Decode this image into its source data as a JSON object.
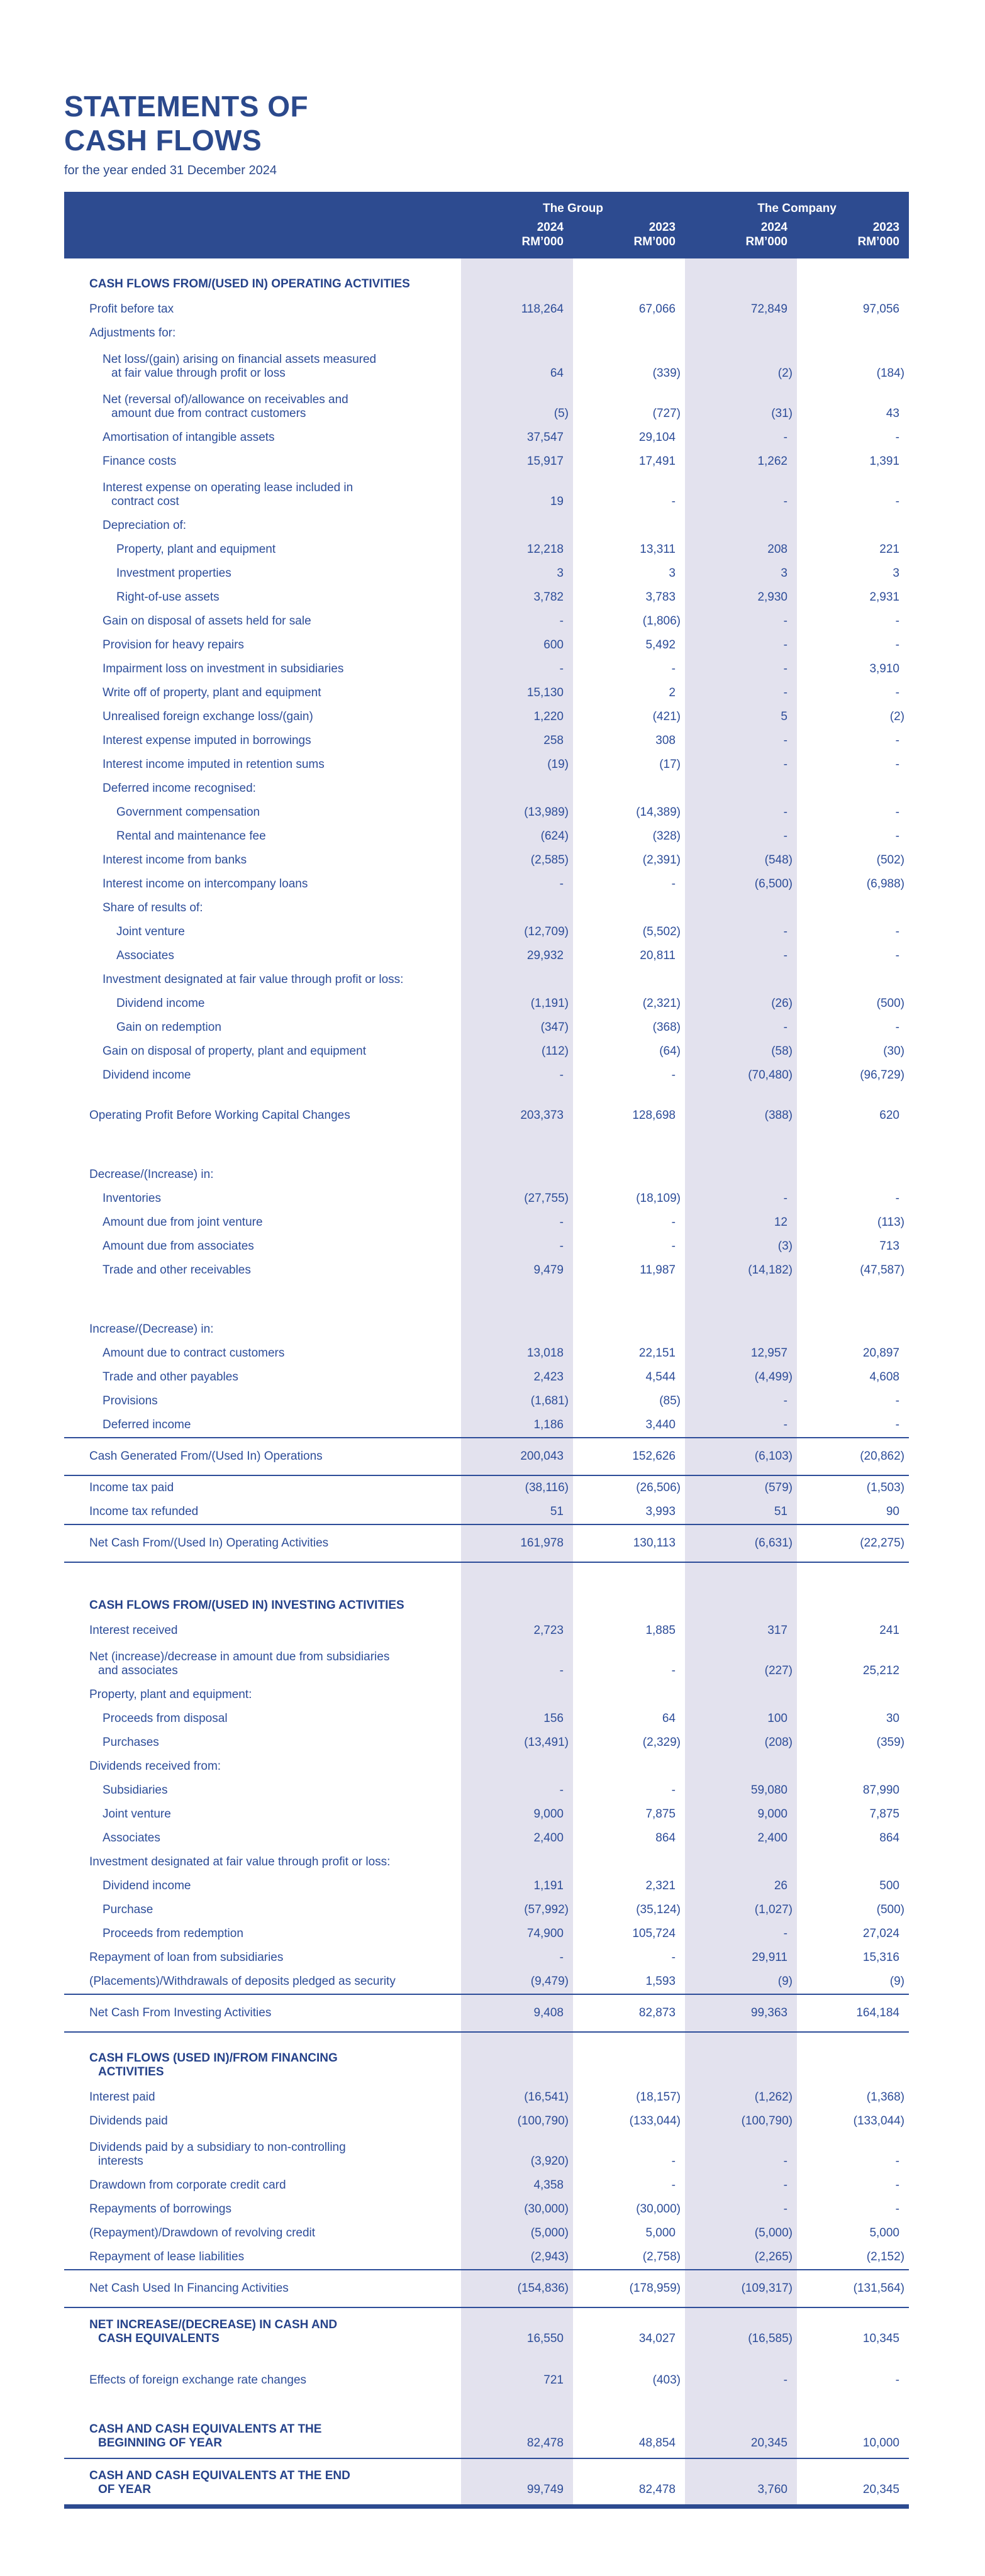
{
  "page": {
    "title_line1": "STATEMENTS OF",
    "title_line2": "CASH FLOWS",
    "subtitle": "for the year ended 31 December 2024"
  },
  "colors": {
    "header_bar": "#2d4b90",
    "text_blue": "#2d4d99",
    "section_blue": "#25428a",
    "band_highlight": "#e3e2ee",
    "rule": "#2d4d99"
  },
  "table": {
    "groups": [
      {
        "label": "The Group"
      },
      {
        "label": "The Company"
      }
    ],
    "columns": [
      {
        "year": "2024",
        "unit": "RM’000"
      },
      {
        "year": "2023",
        "unit": "RM’000"
      },
      {
        "year": "2024",
        "unit": "RM’000"
      },
      {
        "year": "2023",
        "unit": "RM’000"
      }
    ],
    "rows": [
      {
        "style": "section",
        "lines": [
          "CASH FLOWS FROM/(USED IN) OPERATING ACTIVITIES"
        ]
      },
      {
        "style": "item",
        "indent": 0,
        "lines": [
          "Profit before tax"
        ],
        "values": [
          "118,264",
          "67,066",
          "72,849",
          "97,056"
        ]
      },
      {
        "style": "subheader",
        "indent": 0,
        "lines": [
          "Adjustments for:"
        ]
      },
      {
        "style": "item",
        "indent": 1,
        "lines": [
          "Net loss/(gain) arising on financial assets measured",
          "at fair value through profit or loss"
        ],
        "values": [
          "64",
          "(339)",
          "(2)",
          "(184)"
        ]
      },
      {
        "style": "item",
        "indent": 1,
        "lines": [
          "Net (reversal of)/allowance on receivables and",
          "amount due from contract customers"
        ],
        "values": [
          "(5)",
          "(727)",
          "(31)",
          "43"
        ]
      },
      {
        "style": "item",
        "indent": 1,
        "lines": [
          "Amortisation of intangible assets"
        ],
        "values": [
          "37,547",
          "29,104",
          "-",
          "-"
        ]
      },
      {
        "style": "item",
        "indent": 1,
        "lines": [
          "Finance costs"
        ],
        "values": [
          "15,917",
          "17,491",
          "1,262",
          "1,391"
        ]
      },
      {
        "style": "item",
        "indent": 1,
        "lines": [
          "Interest expense on operating lease included in",
          "contract cost"
        ],
        "values": [
          "19",
          "-",
          "-",
          "-"
        ]
      },
      {
        "style": "subheader",
        "indent": 1,
        "lines": [
          "Depreciation of:"
        ]
      },
      {
        "style": "item",
        "indent": 2,
        "lines": [
          "Property, plant and equipment"
        ],
        "values": [
          "12,218",
          "13,311",
          "208",
          "221"
        ]
      },
      {
        "style": "item",
        "indent": 2,
        "lines": [
          "Investment properties"
        ],
        "values": [
          "3",
          "3",
          "3",
          "3"
        ]
      },
      {
        "style": "item",
        "indent": 2,
        "lines": [
          "Right-of-use assets"
        ],
        "values": [
          "3,782",
          "3,783",
          "2,930",
          "2,931"
        ]
      },
      {
        "style": "item",
        "indent": 1,
        "lines": [
          "Gain on disposal of assets held for sale"
        ],
        "values": [
          "-",
          "(1,806)",
          "-",
          "-"
        ]
      },
      {
        "style": "item",
        "indent": 1,
        "lines": [
          "Provision for heavy repairs"
        ],
        "values": [
          "600",
          "5,492",
          "-",
          "-"
        ]
      },
      {
        "style": "item",
        "indent": 1,
        "lines": [
          "Impairment loss on investment in subsidiaries"
        ],
        "values": [
          "-",
          "-",
          "-",
          "3,910"
        ]
      },
      {
        "style": "item",
        "indent": 1,
        "lines": [
          "Write off of property, plant and equipment"
        ],
        "values": [
          "15,130",
          "2",
          "-",
          "-"
        ]
      },
      {
        "style": "item",
        "indent": 1,
        "lines": [
          "Unrealised foreign exchange loss/(gain)"
        ],
        "values": [
          "1,220",
          "(421)",
          "5",
          "(2)"
        ]
      },
      {
        "style": "item",
        "indent": 1,
        "lines": [
          "Interest expense imputed in borrowings"
        ],
        "values": [
          "258",
          "308",
          "-",
          "-"
        ]
      },
      {
        "style": "item",
        "indent": 1,
        "lines": [
          "Interest income imputed in retention sums"
        ],
        "values": [
          "(19)",
          "(17)",
          "-",
          "-"
        ]
      },
      {
        "style": "subheader",
        "indent": 1,
        "lines": [
          "Deferred income recognised:"
        ]
      },
      {
        "style": "item",
        "indent": 2,
        "lines": [
          "Government compensation"
        ],
        "values": [
          "(13,989)",
          "(14,389)",
          "-",
          "-"
        ]
      },
      {
        "style": "item",
        "indent": 2,
        "lines": [
          "Rental and maintenance fee"
        ],
        "values": [
          "(624)",
          "(328)",
          "-",
          "-"
        ]
      },
      {
        "style": "item",
        "indent": 1,
        "lines": [
          "Interest income from banks"
        ],
        "values": [
          "(2,585)",
          "(2,391)",
          "(548)",
          "(502)"
        ]
      },
      {
        "style": "item",
        "indent": 1,
        "lines": [
          "Interest income on intercompany loans"
        ],
        "values": [
          "-",
          "-",
          "(6,500)",
          "(6,988)"
        ]
      },
      {
        "style": "subheader",
        "indent": 1,
        "lines": [
          "Share of results of:"
        ]
      },
      {
        "style": "item",
        "indent": 2,
        "lines": [
          "Joint venture"
        ],
        "values": [
          "(12,709)",
          "(5,502)",
          "-",
          "-"
        ]
      },
      {
        "style": "item",
        "indent": 2,
        "lines": [
          "Associates"
        ],
        "values": [
          "29,932",
          "20,811",
          "-",
          "-"
        ]
      },
      {
        "style": "subheader",
        "indent": 1,
        "lines": [
          "Investment designated at fair value through profit or loss:"
        ]
      },
      {
        "style": "item",
        "indent": 2,
        "lines": [
          "Dividend income"
        ],
        "values": [
          "(1,191)",
          "(2,321)",
          "(26)",
          "(500)"
        ]
      },
      {
        "style": "item",
        "indent": 2,
        "lines": [
          "Gain on redemption"
        ],
        "values": [
          "(347)",
          "(368)",
          "-",
          "-"
        ]
      },
      {
        "style": "item",
        "indent": 1,
        "lines": [
          "Gain on disposal of property, plant and equipment"
        ],
        "values": [
          "(112)",
          "(64)",
          "(58)",
          "(30)"
        ]
      },
      {
        "style": "item",
        "indent": 1,
        "lines": [
          "Dividend income"
        ],
        "values": [
          "-",
          "-",
          "(70,480)",
          "(96,729)"
        ]
      },
      {
        "style": "spacer",
        "h": 26
      },
      {
        "style": "item",
        "indent": 0,
        "lines": [
          "Operating Profit Before Working Capital Changes"
        ],
        "values": [
          "203,373",
          "128,698",
          "(388)",
          "620"
        ]
      },
      {
        "style": "spacer",
        "h": 56
      },
      {
        "style": "subheader",
        "indent": 0,
        "lines": [
          "Decrease/(Increase) in:"
        ]
      },
      {
        "style": "item",
        "indent": 1,
        "lines": [
          "Inventories"
        ],
        "values": [
          "(27,755)",
          "(18,109)",
          "-",
          "-"
        ]
      },
      {
        "style": "item",
        "indent": 1,
        "lines": [
          "Amount due from joint venture"
        ],
        "values": [
          "-",
          "-",
          "12",
          "(113)"
        ]
      },
      {
        "style": "item",
        "indent": 1,
        "lines": [
          "Amount due from associates"
        ],
        "values": [
          "-",
          "-",
          "(3)",
          "713"
        ]
      },
      {
        "style": "item",
        "indent": 1,
        "lines": [
          "Trade and other receivables"
        ],
        "values": [
          "9,479",
          "11,987",
          "(14,182)",
          "(47,587)"
        ]
      },
      {
        "style": "spacer",
        "h": 56
      },
      {
        "style": "subheader",
        "indent": 0,
        "lines": [
          "Increase/(Decrease) in:"
        ]
      },
      {
        "style": "item",
        "indent": 1,
        "lines": [
          "Amount due to contract customers"
        ],
        "values": [
          "13,018",
          "22,151",
          "12,957",
          "20,897"
        ]
      },
      {
        "style": "item",
        "indent": 1,
        "lines": [
          "Trade and other payables"
        ],
        "values": [
          "2,423",
          "4,544",
          "(4,499)",
          "4,608"
        ]
      },
      {
        "style": "item",
        "indent": 1,
        "lines": [
          "Provisions"
        ],
        "values": [
          "(1,681)",
          "(85)",
          "-",
          "-"
        ]
      },
      {
        "style": "item",
        "indent": 1,
        "lines": [
          "Deferred income"
        ],
        "values": [
          "1,186",
          "3,440",
          "-",
          "-"
        ]
      },
      {
        "style": "total",
        "indent": 0,
        "lines": [
          "Cash Generated From/(Used In) Operations"
        ],
        "values": [
          "200,043",
          "152,626",
          "(6,103)",
          "(20,862)"
        ]
      },
      {
        "style": "item",
        "indent": 0,
        "lines": [
          "Income tax paid"
        ],
        "values": [
          "(38,116)",
          "(26,506)",
          "(579)",
          "(1,503)"
        ]
      },
      {
        "style": "item",
        "indent": 0,
        "lines": [
          "Income tax refunded"
        ],
        "values": [
          "51",
          "3,993",
          "51",
          "90"
        ]
      },
      {
        "style": "total",
        "indent": 0,
        "lines": [
          "Net Cash From/(Used In) Operating Activities"
        ],
        "values": [
          "161,978",
          "130,113",
          "(6,631)",
          "(22,275)"
        ]
      },
      {
        "style": "spacer",
        "h": 28
      },
      {
        "style": "section",
        "lines": [
          "CASH FLOWS FROM/(USED IN) INVESTING ACTIVITIES"
        ]
      },
      {
        "style": "item",
        "indent": 0,
        "lines": [
          "Interest received"
        ],
        "values": [
          "2,723",
          "1,885",
          "317",
          "241"
        ]
      },
      {
        "style": "item",
        "indent": 0,
        "lines": [
          "Net (increase)/decrease in amount due from subsidiaries",
          "and associates"
        ],
        "values": [
          "-",
          "-",
          "(227)",
          "25,212"
        ]
      },
      {
        "style": "subheader",
        "indent": 0,
        "lines": [
          "Property, plant and equipment:"
        ]
      },
      {
        "style": "item",
        "indent": 1,
        "lines": [
          "Proceeds from disposal"
        ],
        "values": [
          "156",
          "64",
          "100",
          "30"
        ]
      },
      {
        "style": "item",
        "indent": 1,
        "lines": [
          "Purchases"
        ],
        "values": [
          "(13,491)",
          "(2,329)",
          "(208)",
          "(359)"
        ]
      },
      {
        "style": "subheader",
        "indent": 0,
        "lines": [
          "Dividends received from:"
        ]
      },
      {
        "style": "item",
        "indent": 1,
        "lines": [
          "Subsidiaries"
        ],
        "values": [
          "-",
          "-",
          "59,080",
          "87,990"
        ]
      },
      {
        "style": "item",
        "indent": 1,
        "lines": [
          "Joint venture"
        ],
        "values": [
          "9,000",
          "7,875",
          "9,000",
          "7,875"
        ]
      },
      {
        "style": "item",
        "indent": 1,
        "lines": [
          "Associates"
        ],
        "values": [
          "2,400",
          "864",
          "2,400",
          "864"
        ]
      },
      {
        "style": "subheader",
        "indent": 0,
        "lines": [
          "Investment designated at fair value through profit or loss:"
        ]
      },
      {
        "style": "item",
        "indent": 1,
        "lines": [
          "Dividend income"
        ],
        "values": [
          "1,191",
          "2,321",
          "26",
          "500"
        ]
      },
      {
        "style": "item",
        "indent": 1,
        "lines": [
          "Purchase"
        ],
        "values": [
          "(57,992)",
          "(35,124)",
          "(1,027)",
          "(500)"
        ]
      },
      {
        "style": "item",
        "indent": 1,
        "lines": [
          "Proceeds from redemption"
        ],
        "values": [
          "74,900",
          "105,724",
          "-",
          "27,024"
        ]
      },
      {
        "style": "item",
        "indent": 0,
        "lines": [
          "Repayment of loan from subsidiaries"
        ],
        "values": [
          "-",
          "-",
          "29,911",
          "15,316"
        ]
      },
      {
        "style": "item",
        "indent": 0,
        "lines": [
          "(Placements)/Withdrawals of deposits pledged as security"
        ],
        "values": [
          "(9,479)",
          "1,593",
          "(9)",
          "(9)"
        ]
      },
      {
        "style": "total",
        "indent": 0,
        "lines": [
          "Net Cash From Investing Activities"
        ],
        "values": [
          "9,408",
          "82,873",
          "99,363",
          "164,184"
        ]
      },
      {
        "style": "section",
        "lines": [
          "CASH FLOWS (USED IN)/FROM FINANCING",
          "ACTIVITIES"
        ]
      },
      {
        "style": "item",
        "indent": 0,
        "lines": [
          "Interest paid"
        ],
        "values": [
          "(16,541)",
          "(18,157)",
          "(1,262)",
          "(1,368)"
        ]
      },
      {
        "style": "item",
        "indent": 0,
        "lines": [
          "Dividends paid"
        ],
        "values": [
          "(100,790)",
          "(133,044)",
          "(100,790)",
          "(133,044)"
        ]
      },
      {
        "style": "item",
        "indent": 0,
        "lines": [
          "Dividends paid by a subsidiary to non-controlling",
          "interests"
        ],
        "values": [
          "(3,920)",
          "-",
          "-",
          "-"
        ]
      },
      {
        "style": "item",
        "indent": 0,
        "lines": [
          "Drawdown from corporate credit card"
        ],
        "values": [
          "4,358",
          "-",
          "-",
          "-"
        ]
      },
      {
        "style": "item",
        "indent": 0,
        "lines": [
          "Repayments of borrowings"
        ],
        "values": [
          "(30,000)",
          "(30,000)",
          "-",
          "-"
        ]
      },
      {
        "style": "item",
        "indent": 0,
        "lines": [
          "(Repayment)/Drawdown of revolving credit"
        ],
        "values": [
          "(5,000)",
          "5,000",
          "(5,000)",
          "5,000"
        ]
      },
      {
        "style": "item",
        "indent": 0,
        "lines": [
          "Repayment of lease liabilities"
        ],
        "values": [
          "(2,943)",
          "(2,758)",
          "(2,265)",
          "(2,152)"
        ]
      },
      {
        "style": "total",
        "indent": 0,
        "lines": [
          "Net Cash Used In Financing Activities"
        ],
        "values": [
          "(154,836)",
          "(178,959)",
          "(109,317)",
          "(131,564)"
        ]
      },
      {
        "style": "bold",
        "lines": [
          "NET INCREASE/(DECREASE) IN CASH AND",
          "CASH EQUIVALENTS"
        ],
        "values": [
          "16,550",
          "34,027",
          "(16,585)",
          "10,345"
        ]
      },
      {
        "style": "spacer",
        "h": 24
      },
      {
        "style": "item",
        "indent": 0,
        "lines": [
          "Effects of foreign exchange rate changes"
        ],
        "values": [
          "721",
          "(403)",
          "-",
          "-"
        ]
      },
      {
        "style": "spacer",
        "h": 32
      },
      {
        "style": "bold",
        "lines": [
          "CASH AND CASH EQUIVALENTS AT THE",
          "BEGINNING OF YEAR"
        ],
        "values": [
          "82,478",
          "48,854",
          "20,345",
          "10,000"
        ],
        "ruleBelow": true
      },
      {
        "style": "bold",
        "lines": [
          "CASH AND CASH EQUIVALENTS AT THE END",
          "OF YEAR"
        ],
        "values": [
          "99,749",
          "82,478",
          "3,760",
          "20,345"
        ],
        "final": true
      }
    ]
  }
}
